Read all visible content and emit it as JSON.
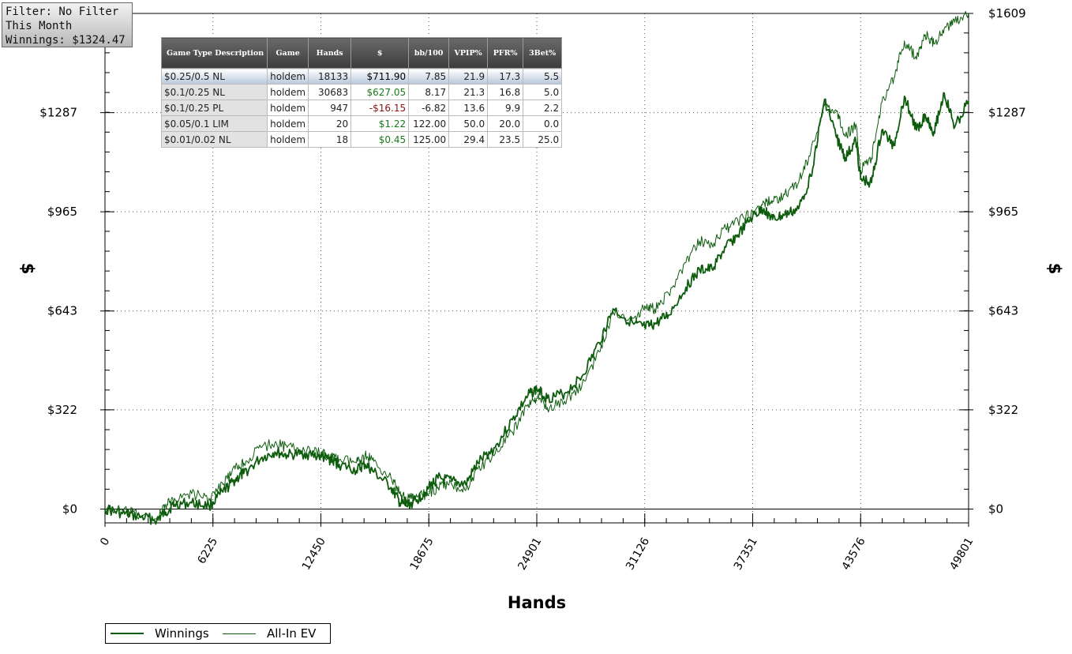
{
  "filter_box": {
    "line1": "Filter: No Filter",
    "line2": "This Month",
    "line3": "Winnings: $1324.47"
  },
  "table": {
    "headers": [
      "Game Type Description",
      "Game",
      "Hands",
      "$",
      "bb/100",
      "VPIP%",
      "PFR%",
      "3Bet%"
    ],
    "rows": [
      {
        "desc": "$0.25/0.5 NL",
        "game": "holdem",
        "hands": "18133",
        "dollars": "$711.90",
        "bb100": "7.85",
        "vpip": "21.9",
        "pfr": "17.3",
        "bet3": "5.5",
        "color": "#000000"
      },
      {
        "desc": "$0.1/0.25 NL",
        "game": "holdem",
        "hands": "30683",
        "dollars": "$627.05",
        "bb100": "8.17",
        "vpip": "21.3",
        "pfr": "16.8",
        "bet3": "5.0",
        "color": "#1a7a1a"
      },
      {
        "desc": "$0.1/0.25 PL",
        "game": "holdem",
        "hands": "947",
        "dollars": "-$16.15",
        "bb100": "-6.82",
        "vpip": "13.6",
        "pfr": "9.9",
        "bet3": "2.2",
        "color": "#8b1010"
      },
      {
        "desc": "$0.05/0.1 LIM",
        "game": "holdem",
        "hands": "20",
        "dollars": "$1.22",
        "bb100": "122.00",
        "vpip": "50.0",
        "pfr": "20.0",
        "bet3": "0.0",
        "color": "#1a7a1a"
      },
      {
        "desc": "$0.01/0.02 NL",
        "game": "holdem",
        "hands": "18",
        "dollars": "$0.45",
        "bb100": "125.00",
        "vpip": "29.4",
        "pfr": "23.5",
        "bet3": "25.0",
        "color": "#1a7a1a"
      }
    ]
  },
  "chart_data": {
    "type": "line",
    "title": "",
    "xlabel": "Hands",
    "ylabel": "$",
    "xlim": [
      0,
      49801
    ],
    "ylim": [
      -45,
      1609
    ],
    "x_ticks": [
      0,
      6225,
      12450,
      18675,
      24901,
      31126,
      37351,
      43576,
      49801
    ],
    "y_ticks": [
      0,
      322,
      643,
      965,
      1287,
      1609
    ],
    "y_tick_labels": [
      "$0",
      "$322",
      "$643",
      "$965",
      "$1287",
      "$1609"
    ],
    "grid": true,
    "legend_position": "bottom-left",
    "line_color": "#0d5c0d",
    "series": [
      {
        "name": "Winnings",
        "x": [
          0,
          1000,
          2000,
          3000,
          3500,
          4000,
          5000,
          6000,
          6800,
          7500,
          8000,
          9000,
          9800,
          10500,
          11500,
          12450,
          13000,
          13500,
          14500,
          15000,
          15500,
          16500,
          17000,
          17400,
          18000,
          18675,
          19200,
          20000,
          20800,
          21500,
          22500,
          23500,
          24400,
          24901,
          25500,
          26500,
          27500,
          28500,
          29300,
          30500,
          31126,
          31700,
          32500,
          33500,
          34300,
          35000,
          35800,
          36500,
          37351,
          38000,
          38500,
          39200,
          40000,
          40700,
          41500,
          42200,
          42700,
          43300,
          43576,
          44200,
          44800,
          45500,
          46100,
          46800,
          47300,
          47800,
          48400,
          49000,
          49801
        ],
        "values": [
          0,
          -15,
          -25,
          -35,
          -10,
          15,
          20,
          10,
          55,
          95,
          115,
          165,
          185,
          175,
          180,
          170,
          160,
          145,
          125,
          145,
          120,
          70,
          20,
          10,
          30,
          70,
          100,
          90,
          80,
          150,
          200,
          290,
          370,
          390,
          360,
          375,
          430,
          540,
          650,
          600,
          590,
          600,
          630,
          720,
          775,
          780,
          850,
          890,
          950,
          975,
          940,
          955,
          975,
          1080,
          1330,
          1205,
          1140,
          1195,
          1070,
          1060,
          1230,
          1180,
          1340,
          1230,
          1280,
          1225,
          1350,
          1240,
          1324
        ]
      },
      {
        "name": "All-In EV",
        "x": [
          0,
          1000,
          2000,
          3000,
          3500,
          4000,
          5000,
          6000,
          6800,
          7500,
          8000,
          9000,
          9800,
          10500,
          11500,
          12450,
          13000,
          13500,
          14500,
          15000,
          15500,
          16500,
          17000,
          17400,
          18000,
          18675,
          19200,
          20000,
          20800,
          21500,
          22500,
          23500,
          24400,
          24901,
          25500,
          26500,
          27500,
          28500,
          29300,
          30500,
          31126,
          31700,
          32500,
          33500,
          34300,
          35000,
          35800,
          36500,
          37351,
          38000,
          38500,
          39200,
          40000,
          40700,
          41500,
          42200,
          42700,
          43300,
          43576,
          44200,
          44800,
          45500,
          46100,
          46800,
          47300,
          47800,
          48400,
          49000,
          49801
        ],
        "values": [
          0,
          -5,
          -20,
          -30,
          10,
          35,
          50,
          35,
          80,
          130,
          150,
          200,
          215,
          200,
          190,
          180,
          170,
          160,
          150,
          175,
          155,
          100,
          50,
          30,
          40,
          50,
          70,
          80,
          60,
          130,
          180,
          250,
          340,
          360,
          330,
          350,
          400,
          510,
          640,
          620,
          660,
          650,
          700,
          800,
          870,
          860,
          910,
          935,
          965,
          995,
          1000,
          1020,
          1060,
          1160,
          1310,
          1290,
          1210,
          1250,
          1100,
          1140,
          1320,
          1400,
          1520,
          1460,
          1540,
          1510,
          1560,
          1580,
          1609
        ]
      }
    ]
  },
  "legend": {
    "items": [
      {
        "label": "Winnings"
      },
      {
        "label": "All-In EV"
      }
    ]
  }
}
